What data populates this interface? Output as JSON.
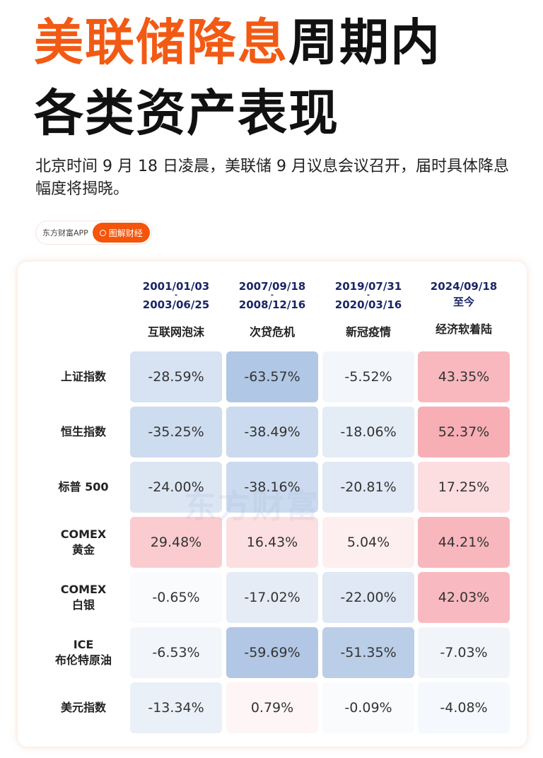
{
  "title": {
    "line1_highlight": "美联储降息",
    "line1_rest": "周期内",
    "line2": "各类资产表现"
  },
  "subtitle": "北京时间 9 月 18 日凌晨，美联储 9 月议息会议召开，届时具体降息幅度将揭晓。",
  "tag": {
    "source": "东方财富APP",
    "button": "图解财经",
    "button_icon": "search-icon"
  },
  "watermark": "东方财富",
  "colors": {
    "accent": "#f25a14",
    "date_text": "#1a2566",
    "positive": "#f4a7ae",
    "negative": "#a9c0e2"
  },
  "columns": [
    {
      "start": "2001/01/03",
      "dash": "-",
      "end": "2003/06/25",
      "name": "互联网泡沫"
    },
    {
      "start": "2007/09/18",
      "dash": "-",
      "end": "2008/12/16",
      "name": "次贷危机"
    },
    {
      "start": "2019/07/31",
      "dash": "-",
      "end": "2020/03/16",
      "name": "新冠疫情"
    },
    {
      "start": "2024/09/18",
      "dash": "",
      "end": "至今",
      "name": "经济软着陆"
    }
  ],
  "rows": [
    {
      "l1": "上证指数",
      "l2": "",
      "values": [
        "-28.59%",
        "-63.57%",
        "-5.52%",
        "43.35%"
      ]
    },
    {
      "l1": "恒生指数",
      "l2": "",
      "values": [
        "-35.25%",
        "-38.49%",
        "-18.06%",
        "52.37%"
      ]
    },
    {
      "l1": "标普 500",
      "l2": "",
      "values": [
        "-24.00%",
        "-38.16%",
        "-20.81%",
        "17.25%"
      ]
    },
    {
      "l1": "COMEX",
      "l2": "黄金",
      "values": [
        "29.48%",
        "16.43%",
        "5.04%",
        "44.21%"
      ]
    },
    {
      "l1": "COMEX",
      "l2": "白银",
      "values": [
        "-0.65%",
        "-17.02%",
        "-22.00%",
        "42.03%"
      ]
    },
    {
      "l1": "ICE",
      "l2": "布伦特原油",
      "values": [
        "-6.53%",
        "-59.69%",
        "-51.35%",
        "-7.03%"
      ]
    },
    {
      "l1": "美元指数",
      "l2": "",
      "values": [
        "-13.34%",
        "0.79%",
        "-0.09%",
        "-4.08%"
      ]
    }
  ]
}
